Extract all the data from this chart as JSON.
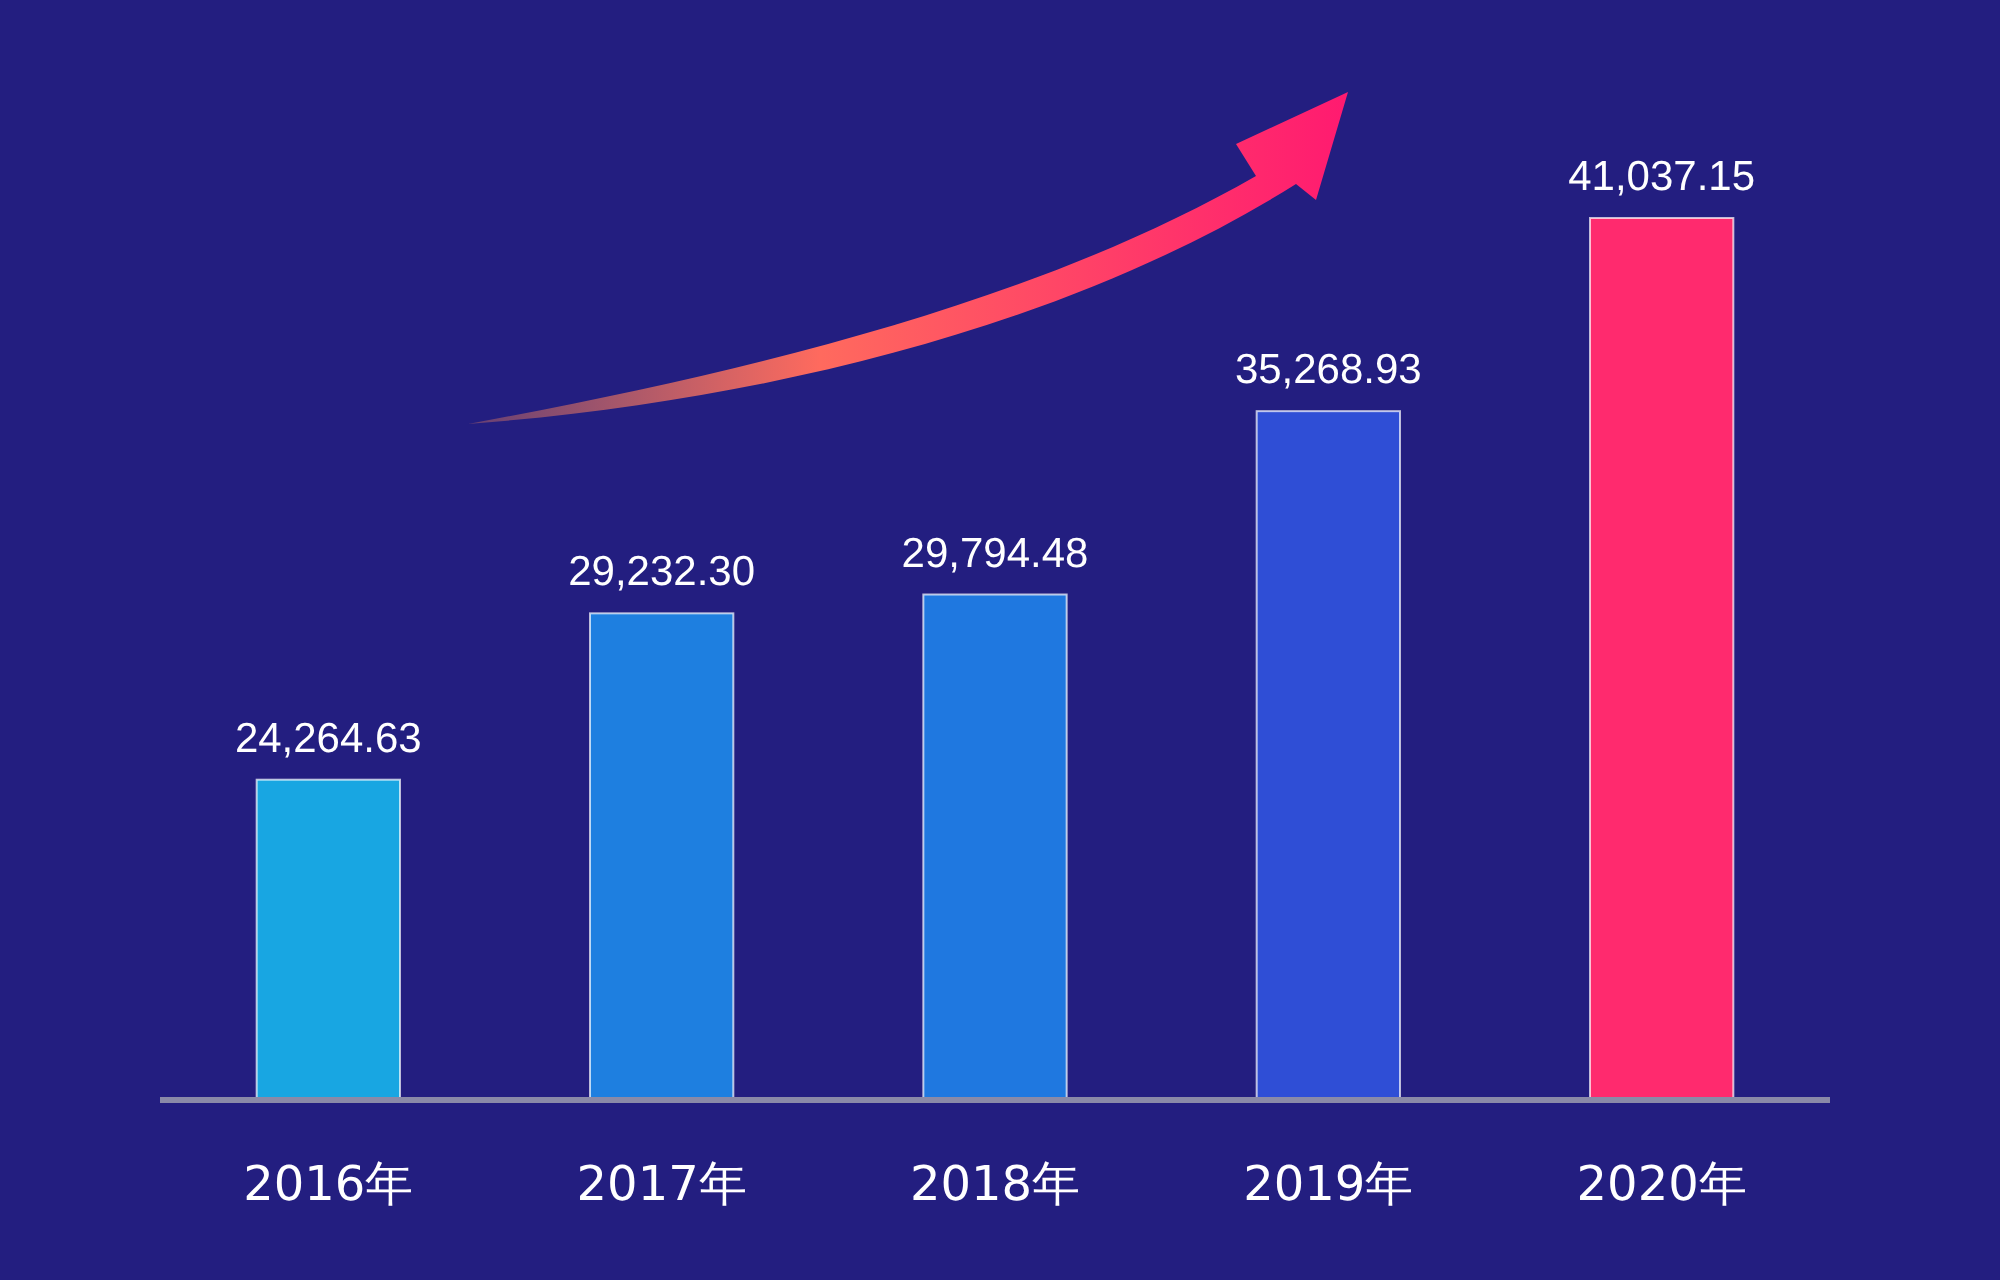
{
  "chart_data": {
    "type": "bar",
    "categories": [
      "2016年",
      "2017年",
      "2018年",
      "2019年",
      "2020年"
    ],
    "values": [
      24264.63,
      29232.3,
      29794.48,
      35268.93,
      41037.15
    ],
    "colors": [
      "#18a6e2",
      "#1e7fe0",
      "#1f78e0",
      "#2f4ed6",
      "#ff2a6e"
    ],
    "ylim": [
      14700,
      41037.15
    ],
    "tick_labels": "x",
    "data_labels": true,
    "value_labels": [
      "24,264.63",
      "29,232.30",
      "29,794.48",
      "35,268.93",
      "41,037.15"
    ]
  }
}
